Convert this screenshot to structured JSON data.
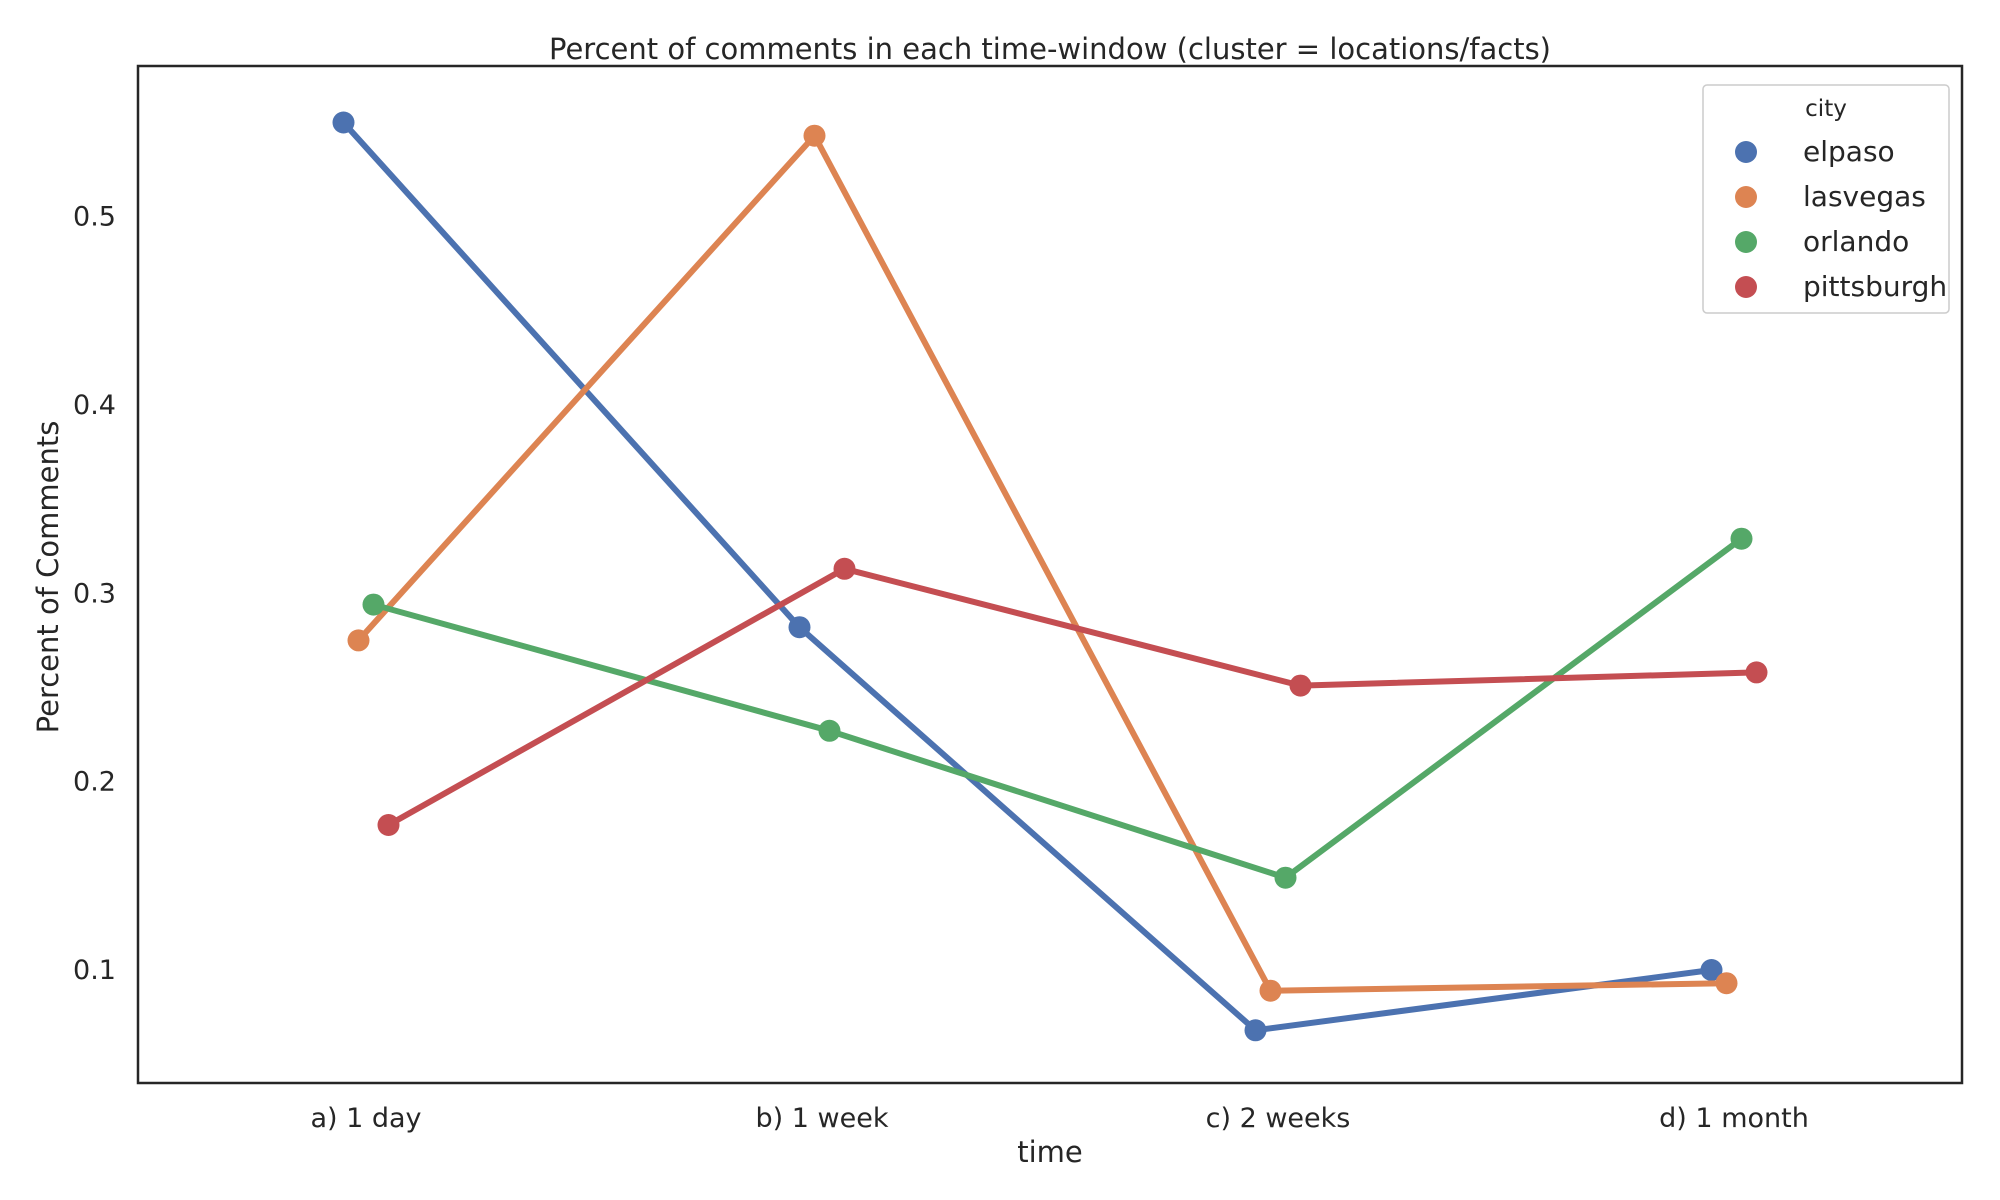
{
  "chart_data": {
    "type": "line",
    "title": "Percent of comments in each time-window (cluster = locations/facts)",
    "xlabel": "time",
    "ylabel": "Percent of Comments",
    "categories": [
      "a) 1 day",
      "b) 1 week",
      "c) 2 weeks",
      "d) 1 month"
    ],
    "yticks": [
      "0.1",
      "0.2",
      "0.3",
      "0.4",
      "0.5"
    ],
    "ylim": [
      0.04,
      0.58
    ],
    "grid": false,
    "legend": {
      "title": "city",
      "position": "top-right"
    },
    "series": [
      {
        "name": "elpaso",
        "color": "#4c72b0",
        "values": [
          0.55,
          0.282,
          0.068,
          0.1
        ]
      },
      {
        "name": "lasvegas",
        "color": "#dd8452",
        "values": [
          0.275,
          0.543,
          0.089,
          0.093
        ]
      },
      {
        "name": "orlando",
        "color": "#55a868",
        "values": [
          0.294,
          0.227,
          0.149,
          0.329
        ]
      },
      {
        "name": "pittsburgh",
        "color": "#c44e52",
        "values": [
          0.177,
          0.313,
          0.251,
          0.258
        ]
      }
    ]
  }
}
